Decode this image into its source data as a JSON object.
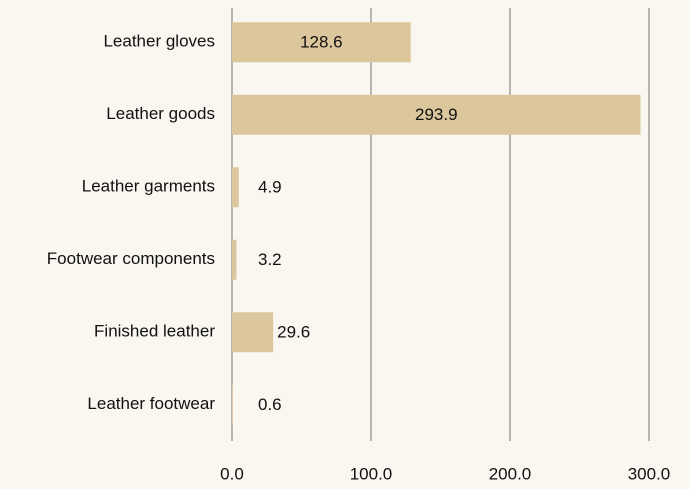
{
  "chart_data": {
    "type": "bar",
    "orientation": "horizontal",
    "categories": [
      "Leather gloves",
      "Leather goods",
      "Leather garments",
      "Footwear components",
      "Finished leather",
      "Leather footwear"
    ],
    "values": [
      128.6,
      293.9,
      4.9,
      3.2,
      29.6,
      0.6
    ],
    "color": "#dcc69c",
    "xlim": [
      0,
      300
    ],
    "xticks": [
      {
        "value": 0,
        "label": "0.0"
      },
      {
        "value": 100,
        "label": "100.0"
      },
      {
        "value": 200,
        "label": "200.0"
      },
      {
        "value": 300,
        "label": "300.0"
      }
    ],
    "grid": true
  }
}
